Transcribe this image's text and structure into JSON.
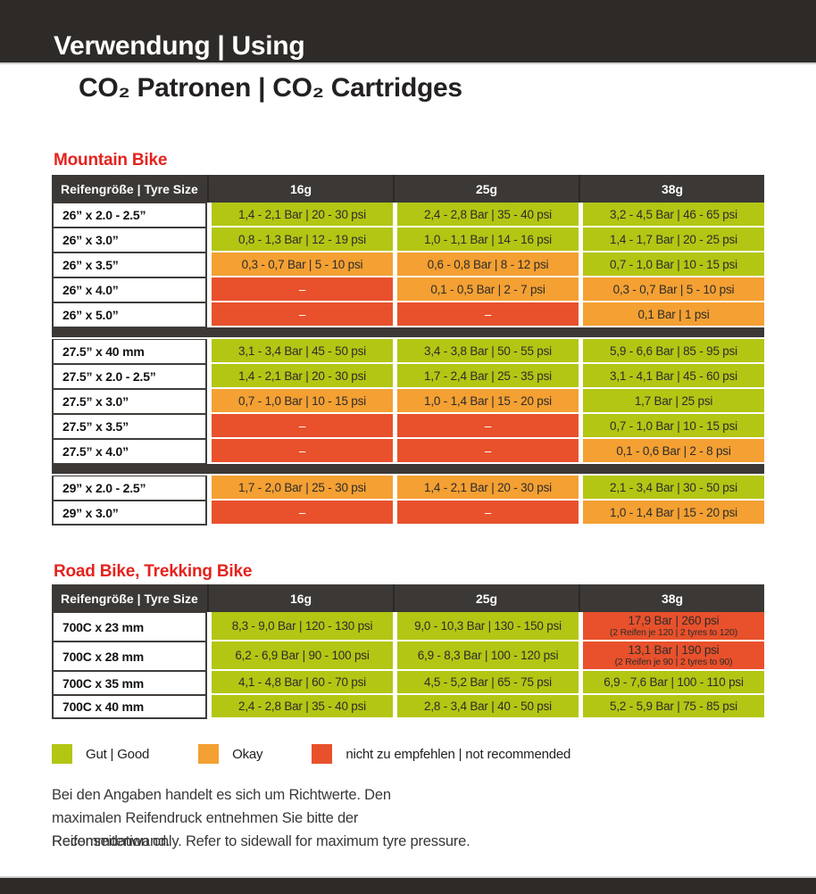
{
  "header": {
    "title": "Verwendung | Using",
    "subtitle": "CO₂ Patronen | CO₂ Cartridges"
  },
  "colors": {
    "good": "#b3c614",
    "okay": "#f4a033",
    "bad": "#e8512c",
    "dark": "#3b3836",
    "accent_red": "#e4231e"
  },
  "tables": [
    {
      "title": "Mountain Bike",
      "columns": [
        "Reifengröße | Tyre Size",
        "16g",
        "25g",
        "38g"
      ],
      "rows": [
        {
          "label": "26” x 2.0 - 2.5”",
          "cells": [
            {
              "status": "good",
              "text": "1,4 - 2,1 Bar | 20 - 30 psi"
            },
            {
              "status": "good",
              "text": "2,4 - 2,8 Bar | 35 - 40 psi"
            },
            {
              "status": "good",
              "text": "3,2 - 4,5 Bar | 46 - 65 psi"
            }
          ]
        },
        {
          "label": "26” x 3.0”",
          "cells": [
            {
              "status": "good",
              "text": "0,8 - 1,3 Bar | 12 - 19 psi"
            },
            {
              "status": "good",
              "text": "1,0 - 1,1 Bar | 14 - 16 psi"
            },
            {
              "status": "good",
              "text": "1,4 - 1,7 Bar | 20 - 25 psi"
            }
          ]
        },
        {
          "label": "26” x 3.5”",
          "cells": [
            {
              "status": "okay",
              "text": "0,3 - 0,7 Bar | 5 - 10 psi"
            },
            {
              "status": "okay",
              "text": "0,6 - 0,8 Bar | 8 - 12 psi"
            },
            {
              "status": "good",
              "text": "0,7 - 1,0 Bar | 10 - 15 psi"
            }
          ]
        },
        {
          "label": "26” x 4.0”",
          "cells": [
            {
              "status": "bad",
              "text": "–"
            },
            {
              "status": "okay",
              "text": "0,1 - 0,5 Bar | 2 - 7 psi"
            },
            {
              "status": "okay",
              "text": "0,3 - 0,7 Bar | 5 - 10 psi"
            }
          ]
        },
        {
          "label": "26” x 5.0”",
          "cells": [
            {
              "status": "bad",
              "text": "–"
            },
            {
              "status": "bad",
              "text": "–"
            },
            {
              "status": "okay",
              "text": "0,1 Bar | 1 psi"
            }
          ]
        },
        {
          "separator": true
        },
        {
          "label": "27.5” x 40 mm",
          "cells": [
            {
              "status": "good",
              "text": "3,1 - 3,4 Bar | 45 - 50 psi"
            },
            {
              "status": "good",
              "text": "3,4 - 3,8 Bar | 50 - 55 psi"
            },
            {
              "status": "good",
              "text": "5,9 - 6,6 Bar | 85 - 95 psi"
            }
          ]
        },
        {
          "label": "27.5” x 2.0 - 2.5”",
          "cells": [
            {
              "status": "good",
              "text": "1,4 - 2,1 Bar | 20 - 30 psi"
            },
            {
              "status": "good",
              "text": "1,7 - 2,4 Bar | 25 - 35 psi"
            },
            {
              "status": "good",
              "text": "3,1 - 4,1 Bar | 45 - 60 psi"
            }
          ]
        },
        {
          "label": "27.5” x 3.0”",
          "cells": [
            {
              "status": "okay",
              "text": "0,7 - 1,0 Bar | 10 - 15 psi"
            },
            {
              "status": "okay",
              "text": "1,0 - 1,4 Bar | 15 - 20 psi"
            },
            {
              "status": "good",
              "text": "1,7 Bar | 25 psi"
            }
          ]
        },
        {
          "label": "27.5” x 3.5”",
          "cells": [
            {
              "status": "bad",
              "text": "–"
            },
            {
              "status": "bad",
              "text": "–"
            },
            {
              "status": "good",
              "text": "0,7 - 1,0 Bar | 10 - 15 psi"
            }
          ]
        },
        {
          "label": "27.5” x 4.0”",
          "cells": [
            {
              "status": "bad",
              "text": "–"
            },
            {
              "status": "bad",
              "text": "–"
            },
            {
              "status": "okay",
              "text": "0,1 - 0,6 Bar | 2 - 8 psi"
            }
          ]
        },
        {
          "separator": true
        },
        {
          "label": "29” x 2.0 - 2.5”",
          "cells": [
            {
              "status": "okay",
              "text": "1,7 - 2,0 Bar | 25 - 30 psi"
            },
            {
              "status": "okay",
              "text": "1,4 - 2,1 Bar | 20 - 30 psi"
            },
            {
              "status": "good",
              "text": "2,1 - 3,4 Bar | 30 - 50 psi"
            }
          ]
        },
        {
          "label": "29” x 3.0”",
          "cells": [
            {
              "status": "bad",
              "text": "–"
            },
            {
              "status": "bad",
              "text": "–"
            },
            {
              "status": "okay",
              "text": "1,0 - 1,4 Bar | 15 - 20 psi"
            }
          ]
        }
      ]
    },
    {
      "title": "Road Bike, Trekking Bike",
      "columns": [
        "Reifengröße | Tyre Size",
        "16g",
        "25g",
        "38g"
      ],
      "rows": [
        {
          "label": "700C x 23 mm",
          "cells": [
            {
              "status": "good",
              "text": "8,3 - 9,0 Bar | 120 - 130 psi"
            },
            {
              "status": "good",
              "text": "9,0 - 10,3 Bar | 130 - 150 psi"
            },
            {
              "status": "bad",
              "text": "17,9 Bar | 260 psi",
              "sub": "(2 Reifen je 120 | 2 tyres to 120)"
            }
          ]
        },
        {
          "label": "700C x 28 mm",
          "cells": [
            {
              "status": "good",
              "text": "6,2 - 6,9 Bar | 90 - 100 psi"
            },
            {
              "status": "good",
              "text": "6,9 - 8,3 Bar | 100 - 120 psi"
            },
            {
              "status": "bad",
              "text": "13,1 Bar | 190 psi",
              "sub": "(2 Reifen je 90 | 2 tyres to 90)"
            }
          ]
        },
        {
          "label": "700C x 35 mm",
          "cells": [
            {
              "status": "good",
              "text": "4,1 - 4,8 Bar | 60 - 70 psi"
            },
            {
              "status": "good",
              "text": "4,5 - 5,2 Bar | 65 - 75 psi"
            },
            {
              "status": "good",
              "text": "6,9 - 7,6 Bar | 100 - 110 psi"
            }
          ]
        },
        {
          "label": "700C x 40 mm",
          "cells": [
            {
              "status": "good",
              "text": "2,4 - 2,8 Bar | 35 - 40 psi"
            },
            {
              "status": "good",
              "text": "2,8 - 3,4 Bar | 40 - 50 psi"
            },
            {
              "status": "good",
              "text": "5,2 - 5,9 Bar | 75 - 85 psi"
            }
          ]
        }
      ]
    }
  ],
  "legend": {
    "items": [
      {
        "label": "Gut | Good",
        "status": "good"
      },
      {
        "label": "Okay",
        "status": "okay"
      },
      {
        "label": "nicht zu empfehlen | not recommended",
        "status": "bad"
      }
    ]
  },
  "notes": {
    "de": "Bei den Angaben handelt es sich um Richtwerte. Den maximalen Reifendruck entnehmen Sie bitte der Reifenseitenwand.",
    "en": "Recommdation only. Refer to sidewall for maximum tyre pressure."
  }
}
